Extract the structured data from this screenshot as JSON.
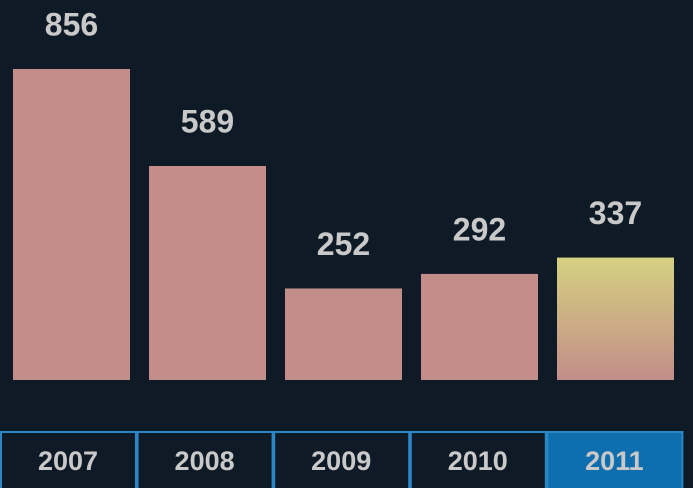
{
  "chart_data": {
    "type": "bar",
    "categories": [
      "2007",
      "2008",
      "2009",
      "2010",
      "2011"
    ],
    "values": [
      856,
      589,
      252,
      292,
      337
    ],
    "color": "#c38d89",
    "highlight_color": "#d5d181",
    "selected": "2011"
  }
}
